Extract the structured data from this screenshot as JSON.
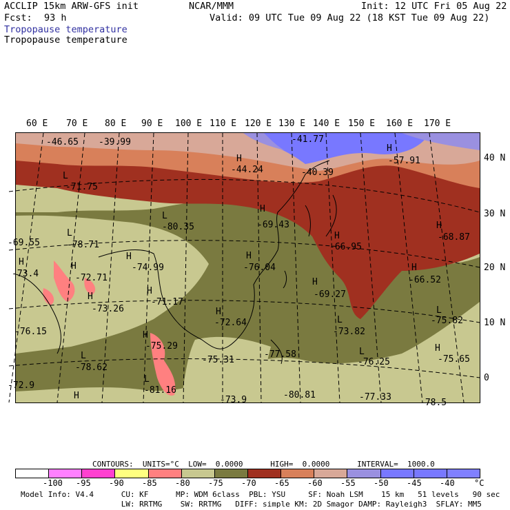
{
  "header": {
    "model": "ACCLIP 15km ARW-GFS init",
    "org": "NCAR/MMM",
    "init": "Init: 12 UTC Fri 05 Aug 22",
    "fcst_label": "Fcst:",
    "fcst_value": "93 h",
    "valid": "Valid: 09 UTC Tue 09 Aug 22 (18 KST Tue 09 Aug 22)",
    "field_title": "Tropopause temperature",
    "field_subtitle": "Tropopause temperature"
  },
  "map": {
    "lon_labels": [
      "60 E",
      "70 E",
      "80 E",
      "90 E",
      "100 E",
      "110 E",
      "120 E",
      "130 E",
      "140 E",
      "150 E",
      "160 E",
      "170 E"
    ],
    "lat_labels": [
      "40 N",
      "30 N",
      "20 N",
      "10 N",
      "0"
    ],
    "extrema": [
      {
        "type": "",
        "value": "-46.65"
      },
      {
        "type": "",
        "value": "-39.99"
      },
      {
        "type": "",
        "value": "-41.77"
      },
      {
        "type": "H",
        "value": "-57.91"
      },
      {
        "type": "H",
        "value": "-44.24"
      },
      {
        "type": "",
        "value": "-40.39"
      },
      {
        "type": "L",
        "value": "-71.75"
      },
      {
        "type": "L",
        "value": "-80.35"
      },
      {
        "type": "H",
        "value": "-69.43"
      },
      {
        "type": "H",
        "value": "-68.87"
      },
      {
        "type": "",
        "value": "-69.55"
      },
      {
        "type": "L",
        "value": "-78.71"
      },
      {
        "type": "H",
        "value": "-66.95"
      },
      {
        "type": "H",
        "value": "-74.99"
      },
      {
        "type": "H",
        "value": "-76.04"
      },
      {
        "type": "H",
        "value": "-73.4"
      },
      {
        "type": "H",
        "value": "-72.71"
      },
      {
        "type": "H",
        "value": "-66.52"
      },
      {
        "type": "H",
        "value": "-69.27"
      },
      {
        "type": "H",
        "value": "-71.17"
      },
      {
        "type": "H",
        "value": "-73.26"
      },
      {
        "type": "H",
        "value": "-72.64"
      },
      {
        "type": "L",
        "value": "-75.82"
      },
      {
        "type": "L",
        "value": "-73.82"
      },
      {
        "type": "",
        "value": "-76.15"
      },
      {
        "type": "H",
        "value": "-75.29"
      },
      {
        "type": "L",
        "value": "-78.62"
      },
      {
        "type": "",
        "value": "-75.31"
      },
      {
        "type": "",
        "value": "-77.58"
      },
      {
        "type": "L",
        "value": "-76.25"
      },
      {
        "type": "H",
        "value": "-75.65"
      },
      {
        "type": "L",
        "value": "-81.16"
      },
      {
        "type": "",
        "value": "-72.9"
      },
      {
        "type": "H",
        "value": ""
      },
      {
        "type": "",
        "value": "-73.9"
      },
      {
        "type": "",
        "value": "-80.81"
      },
      {
        "type": "",
        "value": "-77.33"
      },
      {
        "type": "",
        "value": "-78.5"
      }
    ]
  },
  "contour_info": {
    "contours": "CONTOURS:  UNITS=°C  LOW=  0.0000      HIGH=  0.0000      INTERVAL=  1000.0"
  },
  "colorbar": {
    "colors": [
      "#ffffff",
      "#ff80ff",
      "#ff40d0",
      "#ffff80",
      "#ff8080",
      "#c8c890",
      "#7a7a40",
      "#a03020",
      "#d8805a",
      "#d8a898",
      "#9a90e0",
      "#7878ff",
      "#7878ff",
      "#8080ff"
    ],
    "tick_labels": [
      "-100",
      "-95",
      "-90",
      "-85",
      "-80",
      "-75",
      "-70",
      "-65",
      "-60",
      "-55",
      "-50",
      "-45",
      "-40"
    ],
    "unit": "°C"
  },
  "footer": {
    "line1": "Model Info: V4.4      CU: KF      MP: WDM 6class  PBL: YSU     SF: Noah LSM    15 km   51 levels   90 sec",
    "line2": "                      LW: RRTMG    SW: RRTMG   DIFF: simple KM: 2D Smagor DAMP: Rayleigh3  SFLAY: MM5"
  }
}
